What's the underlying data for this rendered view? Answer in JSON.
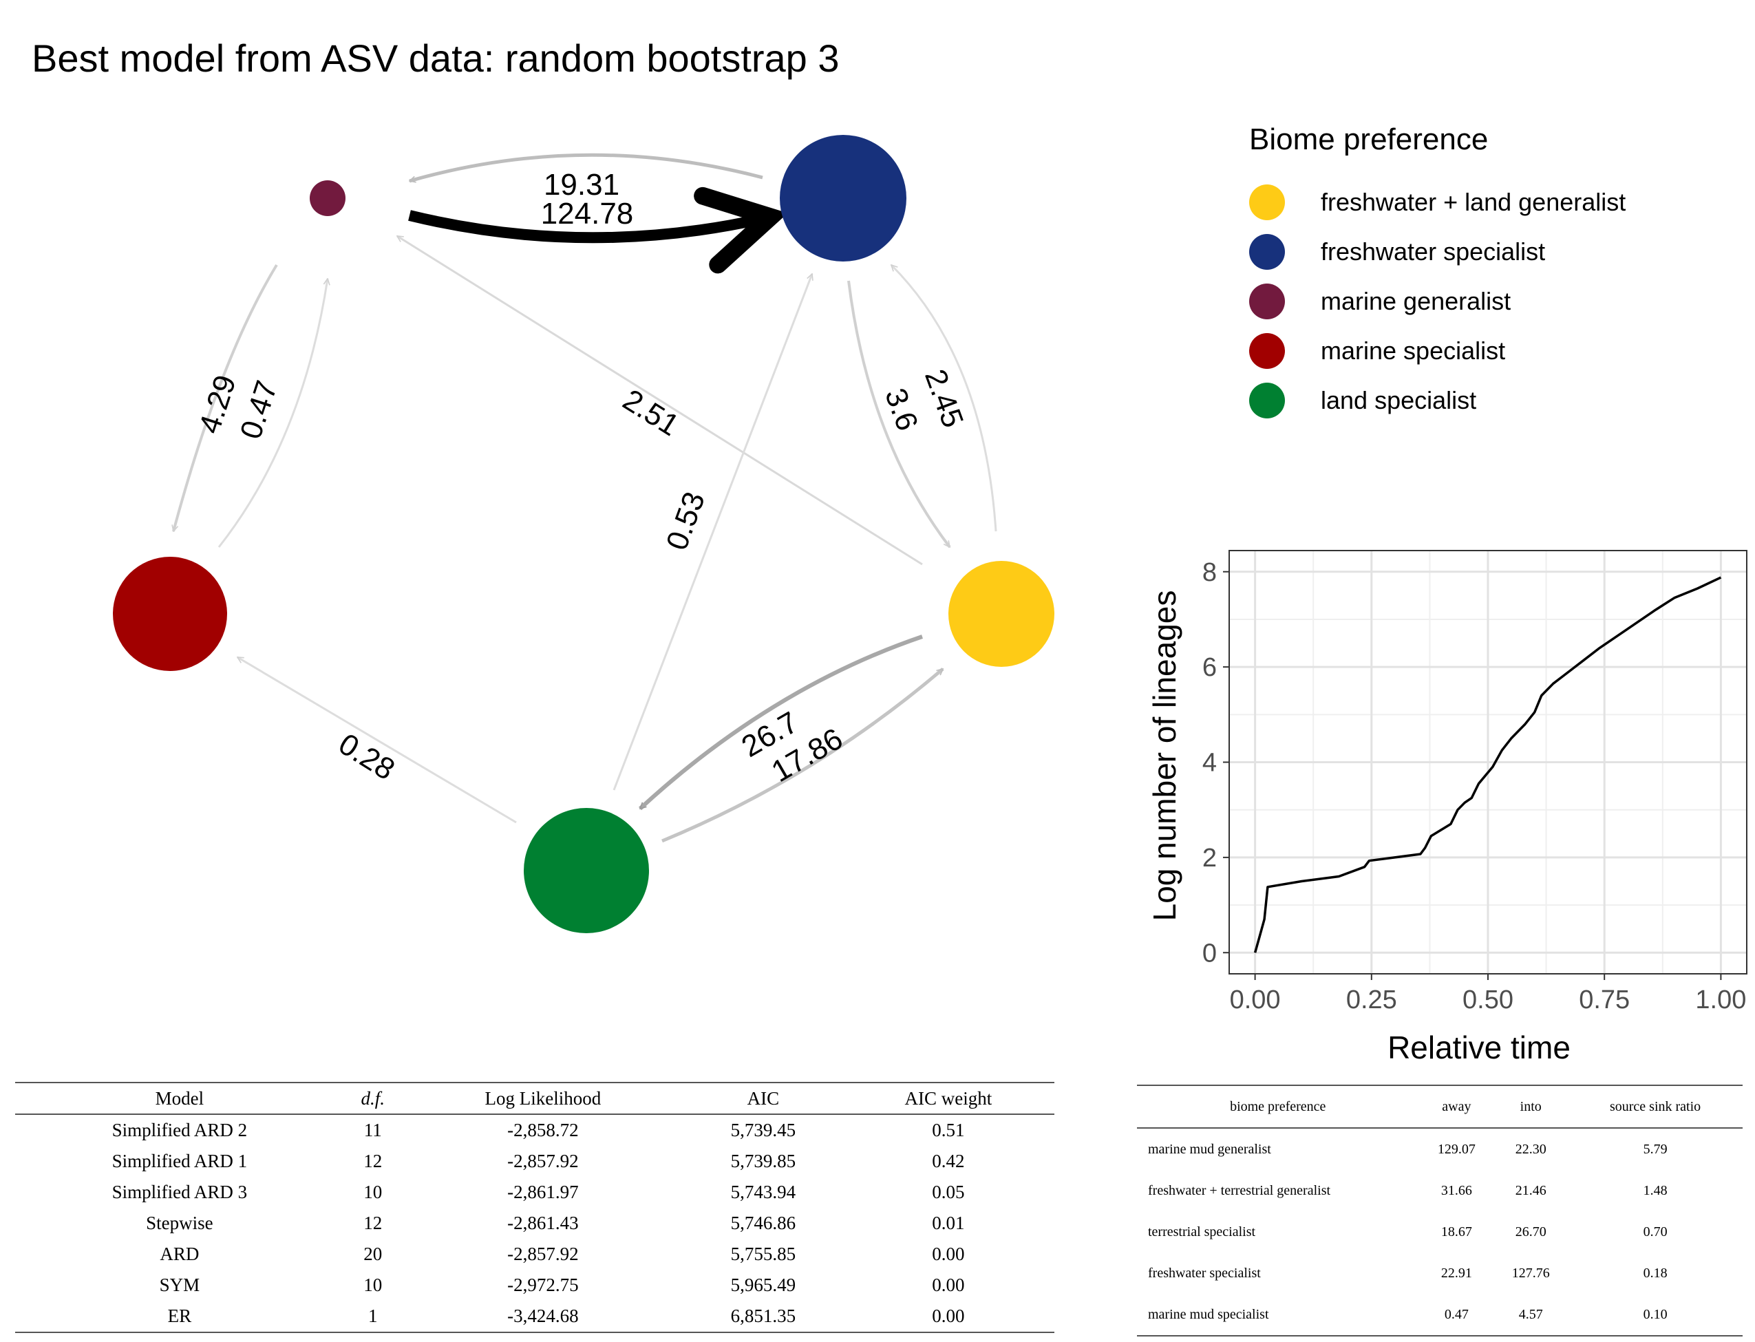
{
  "title": "Best model from ASV data: random bootstrap 3",
  "legend": {
    "title": "Biome preference",
    "items": [
      {
        "label": "freshwater + land generalist",
        "color": "#FECB16"
      },
      {
        "label": "freshwater specialist",
        "color": "#17317C"
      },
      {
        "label": "marine generalist",
        "color": "#721A3E"
      },
      {
        "label": "marine specialist",
        "color": "#A10000"
      },
      {
        "label": "land specialist",
        "color": "#008031"
      }
    ]
  },
  "network": {
    "nodes": [
      {
        "id": "marine generalist",
        "color": "#721A3E",
        "size": "smallest"
      },
      {
        "id": "freshwater specialist",
        "color": "#17317C",
        "size": "largest"
      },
      {
        "id": "marine specialist",
        "color": "#A10000",
        "size": "large"
      },
      {
        "id": "freshwater + land generalist",
        "color": "#FECB16",
        "size": "medium"
      },
      {
        "id": "land specialist",
        "color": "#008031",
        "size": "large"
      }
    ],
    "edges": [
      {
        "from": "marine generalist",
        "to": "freshwater specialist",
        "rate": "124.78"
      },
      {
        "from": "freshwater specialist",
        "to": "marine generalist",
        "rate": "19.31"
      },
      {
        "from": "marine generalist",
        "to": "marine specialist",
        "rate": "4.29"
      },
      {
        "from": "marine specialist",
        "to": "marine generalist",
        "rate": "0.47"
      },
      {
        "from": "freshwater + land generalist",
        "to": "marine generalist",
        "rate": "2.51"
      },
      {
        "from": "land specialist",
        "to": "freshwater specialist",
        "rate": "0.53"
      },
      {
        "from": "freshwater specialist",
        "to": "freshwater + land generalist",
        "rate": "3.6"
      },
      {
        "from": "freshwater + land generalist",
        "to": "freshwater specialist",
        "rate": "2.45"
      },
      {
        "from": "land specialist",
        "to": "marine specialist",
        "rate": "0.28"
      },
      {
        "from": "freshwater + land generalist",
        "to": "land specialist",
        "rate": "26.7"
      },
      {
        "from": "land specialist",
        "to": "freshwater + land generalist",
        "rate": "17.86"
      }
    ]
  },
  "chart_data": {
    "type": "line",
    "title": "",
    "xlabel": "Relative time",
    "ylabel": "Log number of lineages",
    "xlim": [
      0,
      1
    ],
    "ylim": [
      0,
      8
    ],
    "xticks": [
      "0.00",
      "0.25",
      "0.50",
      "0.75",
      "1.00"
    ],
    "yticks": [
      "0",
      "2",
      "4",
      "6",
      "8"
    ],
    "grid": true,
    "series": [
      {
        "x": [
          0.0,
          0.01,
          0.02,
          0.027,
          0.1,
          0.18,
          0.235,
          0.245,
          0.3,
          0.355,
          0.365,
          0.378,
          0.42,
          0.435,
          0.45,
          0.465,
          0.48,
          0.51,
          0.53,
          0.55,
          0.58,
          0.6,
          0.615,
          0.64,
          0.66,
          0.7,
          0.74,
          0.8,
          0.86,
          0.9,
          0.95,
          1.0
        ],
        "y": [
          0.0,
          0.35,
          0.7,
          1.38,
          1.5,
          1.6,
          1.8,
          1.93,
          2.0,
          2.07,
          2.2,
          2.45,
          2.7,
          3.0,
          3.15,
          3.25,
          3.55,
          3.9,
          4.25,
          4.5,
          4.8,
          5.05,
          5.4,
          5.65,
          5.8,
          6.1,
          6.4,
          6.8,
          7.2,
          7.45,
          7.65,
          7.88
        ]
      }
    ]
  },
  "model_table": {
    "headers": [
      "Model",
      "d.f.",
      "Log Likelihood",
      "AIC",
      "AIC weight"
    ],
    "rows": [
      [
        "Simplified ARD 2",
        "11",
        "-2,858.72",
        "5,739.45",
        "0.51"
      ],
      [
        "Simplified ARD 1",
        "12",
        "-2,857.92",
        "5,739.85",
        "0.42"
      ],
      [
        "Simplified ARD 3",
        "10",
        "-2,861.97",
        "5,743.94",
        "0.05"
      ],
      [
        "Stepwise",
        "12",
        "-2,861.43",
        "5,746.86",
        "0.01"
      ],
      [
        "ARD",
        "20",
        "-2,857.92",
        "5,755.85",
        "0.00"
      ],
      [
        "SYM",
        "10",
        "-2,972.75",
        "5,965.49",
        "0.00"
      ],
      [
        "ER",
        "1",
        "-3,424.68",
        "6,851.35",
        "0.00"
      ]
    ]
  },
  "source_sink_table": {
    "headers": [
      "biome preference",
      "away",
      "into",
      "source sink ratio"
    ],
    "rows": [
      [
        "marine mud generalist",
        "129.07",
        "22.30",
        "5.79"
      ],
      [
        "freshwater + terrestrial generalist",
        "31.66",
        "21.46",
        "1.48"
      ],
      [
        "terrestrial specialist",
        "18.67",
        "26.70",
        "0.70"
      ],
      [
        "freshwater specialist",
        "22.91",
        "127.76",
        "0.18"
      ],
      [
        "marine mud specialist",
        "0.47",
        "4.57",
        "0.10"
      ]
    ]
  }
}
